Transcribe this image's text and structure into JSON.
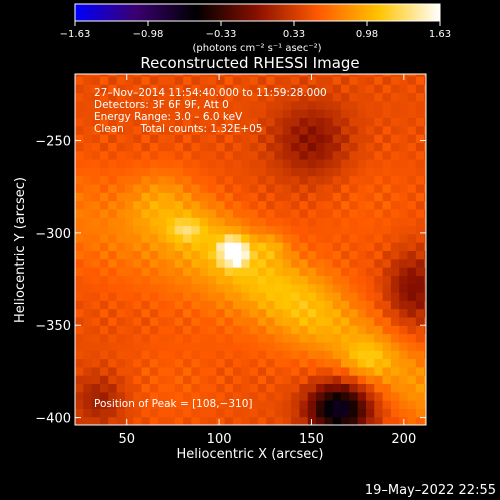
{
  "chart_data": {
    "type": "heatmap",
    "title": "Reconstructed RHESSI Image",
    "xlabel": "Heliocentric X (arcsec)",
    "ylabel": "Heliocentric Y (arcsec)",
    "xlim": [
      22,
      212
    ],
    "ylim": [
      -404,
      -214
    ],
    "x_ticks": [
      50,
      100,
      150,
      200
    ],
    "y_ticks": [
      -250,
      -300,
      -350,
      -400
    ],
    "x_tick_labels": [
      "50",
      "100",
      "150",
      "200"
    ],
    "y_tick_labels": [
      "−250",
      "−300",
      "−350",
      "−400"
    ],
    "colormap": [
      "#0000ff",
      "#3a0070",
      "#000000",
      "#8a1000",
      "#ff5a00",
      "#ffc400",
      "#ffffff"
    ],
    "colorbar": {
      "range": [
        -1.63,
        1.63
      ],
      "tick_labels": [
        "−1.63",
        "−0.98",
        "−0.33",
        "0.33",
        "0.98",
        "1.63"
      ],
      "units_label": "(photons cm⁻² s⁻¹ asec⁻²)"
    },
    "info_lines": [
      "27–Nov–2014 11:54:40.000 to 11:59:28.000",
      "Detectors: 3F 6F 9F, Att 0",
      "Energy Range: 3.0 – 6.0 keV",
      "Clean     Total counts: 1.32E+05"
    ],
    "peak_text": "Position of Peak = [108,−310]",
    "peak": {
      "x": 108,
      "y": -310,
      "value": 1.63
    },
    "background_level": 0.45,
    "sources": [
      {
        "x": 108,
        "y": -310,
        "sx": 5,
        "sy": 5,
        "amp": 1.2
      },
      {
        "x": 82,
        "y": -298,
        "sx": 6,
        "sy": 4,
        "amp": 0.35
      },
      {
        "x": 128,
        "y": -307,
        "sx": 6,
        "sy": 5,
        "amp": 0.25
      },
      {
        "x": 180,
        "y": -368,
        "sx": 9,
        "sy": 7,
        "amp": 0.3
      },
      {
        "x": 75,
        "y": -380,
        "sx": 20,
        "sy": 18,
        "amp": 0.1
      },
      {
        "x": 180,
        "y": -285,
        "sx": 22,
        "sy": 20,
        "amp": 0.1
      }
    ],
    "bands": [
      {
        "x1": 70,
        "y1": -285,
        "x2": 212,
        "y2": -385,
        "width": 14,
        "amp": 0.4
      },
      {
        "x1": 22,
        "y1": -290,
        "x2": 140,
        "y2": -340,
        "width": 20,
        "amp": 0.25
      }
    ],
    "negative_regions": [
      {
        "x": 165,
        "y": -395,
        "sx": 12,
        "sy": 10,
        "amp": -1.2
      },
      {
        "x": 150,
        "y": -250,
        "sx": 15,
        "sy": 15,
        "amp": -0.45
      },
      {
        "x": 205,
        "y": -330,
        "sx": 10,
        "sy": 14,
        "amp": -0.5
      },
      {
        "x": 35,
        "y": -390,
        "sx": 10,
        "sy": 10,
        "amp": -0.35
      }
    ]
  },
  "footer": {
    "date": "19–May–2022 22:55"
  }
}
